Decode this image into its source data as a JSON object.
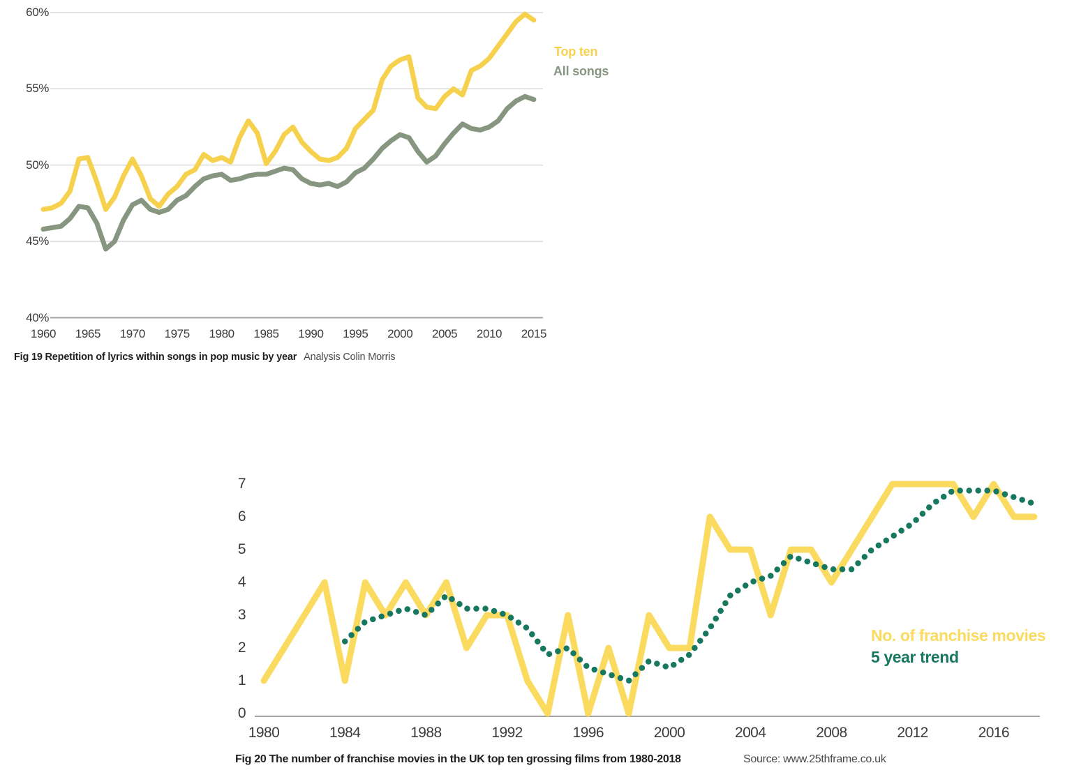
{
  "page": {
    "background": "#ffffff"
  },
  "chart_data": [
    {
      "id": "fig19",
      "type": "line",
      "title": "Fig 19 Repetition of lyrics within songs in pop music by year",
      "credit": "Analysis Colin Morris",
      "xlabel": "",
      "ylabel": "",
      "ylim": [
        40,
        60
      ],
      "grid": "horizontal",
      "legend_position": "right-top",
      "yticks": [
        "60%",
        "55%",
        "50%",
        "45%",
        "40%"
      ],
      "ytick_values": [
        60,
        55,
        50,
        45,
        40
      ],
      "xticks": [
        "1960",
        "1965",
        "1970",
        "1975",
        "1980",
        "1985",
        "1990",
        "1995",
        "2000",
        "2005",
        "2010",
        "2015"
      ],
      "x": [
        1960,
        1961,
        1962,
        1963,
        1964,
        1965,
        1966,
        1967,
        1968,
        1969,
        1970,
        1971,
        1972,
        1973,
        1974,
        1975,
        1976,
        1977,
        1978,
        1979,
        1980,
        1981,
        1982,
        1983,
        1984,
        1985,
        1986,
        1987,
        1988,
        1989,
        1990,
        1991,
        1992,
        1993,
        1994,
        1995,
        1996,
        1997,
        1998,
        1999,
        2000,
        2001,
        2002,
        2003,
        2004,
        2005,
        2006,
        2007,
        2008,
        2009,
        2010,
        2011,
        2012,
        2013,
        2014,
        2015
      ],
      "series": [
        {
          "name": "Top ten",
          "color": "#F6D14E",
          "style": "solid",
          "values": [
            47.1,
            47.2,
            47.5,
            48.3,
            50.4,
            50.5,
            48.9,
            47.1,
            47.9,
            49.3,
            50.4,
            49.3,
            47.8,
            47.3,
            48.1,
            48.6,
            49.4,
            49.7,
            50.7,
            50.3,
            50.5,
            50.2,
            51.8,
            52.9,
            52.1,
            50.1,
            50.9,
            52.0,
            52.5,
            51.5,
            50.9,
            50.4,
            50.3,
            50.5,
            51.1,
            52.4,
            53.0,
            53.6,
            55.6,
            56.5,
            56.9,
            57.1,
            54.4,
            53.8,
            53.7,
            54.5,
            55.0,
            54.6,
            56.2,
            56.5,
            57.0,
            57.8,
            58.6,
            59.4,
            59.9,
            59.5
          ]
        },
        {
          "name": "All songs",
          "color": "#879680",
          "style": "solid",
          "values": [
            45.8,
            45.9,
            46.0,
            46.5,
            47.3,
            47.2,
            46.2,
            44.5,
            45.0,
            46.4,
            47.4,
            47.7,
            47.1,
            46.9,
            47.1,
            47.7,
            48.0,
            48.6,
            49.1,
            49.3,
            49.4,
            49.0,
            49.1,
            49.3,
            49.4,
            49.4,
            49.6,
            49.8,
            49.7,
            49.1,
            48.8,
            48.7,
            48.8,
            48.6,
            48.9,
            49.5,
            49.8,
            50.4,
            51.1,
            51.6,
            52.0,
            51.8,
            50.9,
            50.2,
            50.6,
            51.4,
            52.1,
            52.7,
            52.4,
            52.3,
            52.5,
            52.9,
            53.7,
            54.2,
            54.5,
            54.3
          ]
        }
      ]
    },
    {
      "id": "fig20",
      "type": "line",
      "title": "Fig 20 The number of franchise movies in the UK top ten grossing films from 1980-2018",
      "source": "Source: www.25thframe.co.uk",
      "xlabel": "",
      "ylabel": "",
      "ylim": [
        0,
        7
      ],
      "grid": "baseline-only",
      "legend_position": "right",
      "yticks": [
        "7",
        "6",
        "5",
        "4",
        "3",
        "2",
        "1",
        "0"
      ],
      "ytick_values": [
        7,
        6,
        5,
        4,
        3,
        2,
        1,
        0
      ],
      "xticks": [
        "1980",
        "1984",
        "1988",
        "1992",
        "1996",
        "2000",
        "2004",
        "2008",
        "2012",
        "2016"
      ],
      "x": [
        1980,
        1981,
        1982,
        1983,
        1984,
        1985,
        1986,
        1987,
        1988,
        1989,
        1990,
        1991,
        1992,
        1993,
        1994,
        1995,
        1996,
        1997,
        1998,
        1999,
        2000,
        2001,
        2002,
        2003,
        2004,
        2005,
        2006,
        2007,
        2008,
        2009,
        2010,
        2011,
        2012,
        2013,
        2014,
        2015,
        2016,
        2017,
        2018
      ],
      "series": [
        {
          "name": "No. of franchise movies",
          "color": "#FADA5F",
          "style": "solid",
          "values": [
            1,
            2,
            3,
            4,
            1,
            4,
            3,
            4,
            3,
            4,
            2,
            3,
            3,
            1,
            0,
            3,
            0,
            2,
            0,
            3,
            2,
            2,
            6,
            5,
            5,
            3,
            5,
            5,
            4,
            5,
            6,
            7,
            7,
            7,
            7,
            6,
            7,
            6,
            6
          ]
        },
        {
          "name": "5 year trend",
          "color": "#17785F",
          "style": "dotted",
          "values": [
            null,
            null,
            null,
            null,
            2.2,
            2.8,
            3.0,
            3.2,
            3.0,
            3.6,
            3.2,
            3.2,
            3.0,
            2.6,
            1.8,
            2.0,
            1.4,
            1.2,
            1.0,
            1.6,
            1.4,
            1.8,
            2.6,
            3.6,
            4.0,
            4.2,
            4.8,
            4.6,
            4.4,
            4.4,
            5.0,
            5.4,
            5.8,
            6.4,
            6.8,
            6.8,
            6.8,
            6.6,
            6.4
          ]
        }
      ]
    }
  ]
}
